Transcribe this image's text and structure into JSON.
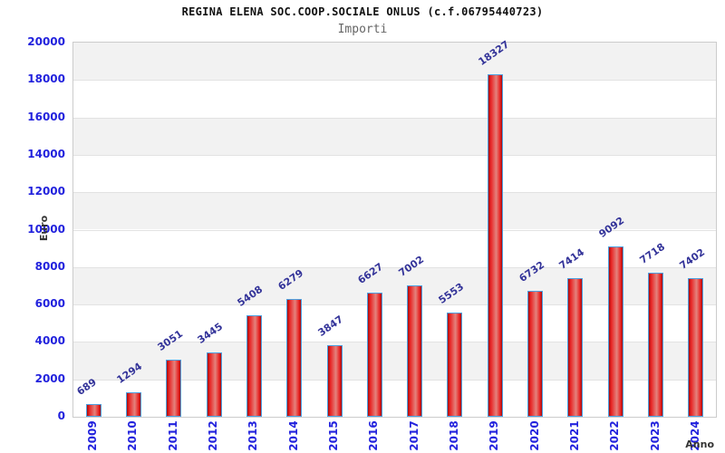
{
  "chart_data": {
    "type": "bar",
    "title": "REGINA ELENA SOC.COOP.SOCIALE ONLUS (c.f.06795440723)",
    "subtitle": "Importi",
    "categories": [
      "2009",
      "2010",
      "2011",
      "2012",
      "2013",
      "2014",
      "2015",
      "2016",
      "2017",
      "2018",
      "2019",
      "2020",
      "2021",
      "2022",
      "2023",
      "2024"
    ],
    "values": [
      689,
      1294,
      3051,
      3445,
      5408,
      6279,
      3847,
      6627,
      7002,
      5553,
      18327,
      6732,
      7414,
      9092,
      7718,
      7402
    ],
    "xlabel": "Anno",
    "ylabel": "Euro",
    "ylim": [
      0,
      20000
    ],
    "ytick_step": 2000,
    "grid": true,
    "legend": "none",
    "value_labels_rotated": true,
    "colors": {
      "bar_fill": "#e82222",
      "bar_fill_dark": "#a50d0d",
      "bar_fill_light": "#e4837d",
      "bar_border": "#4da0e0",
      "tick_label": "#2222dd",
      "value_label": "#333399",
      "band_gray": "#f2f2f2",
      "band_white": "#ffffff",
      "gridline": "#e2e2e2",
      "plot_border": "#cccccc",
      "title": "#111111",
      "subtitle": "#666666",
      "axis_title": "#333333"
    }
  }
}
